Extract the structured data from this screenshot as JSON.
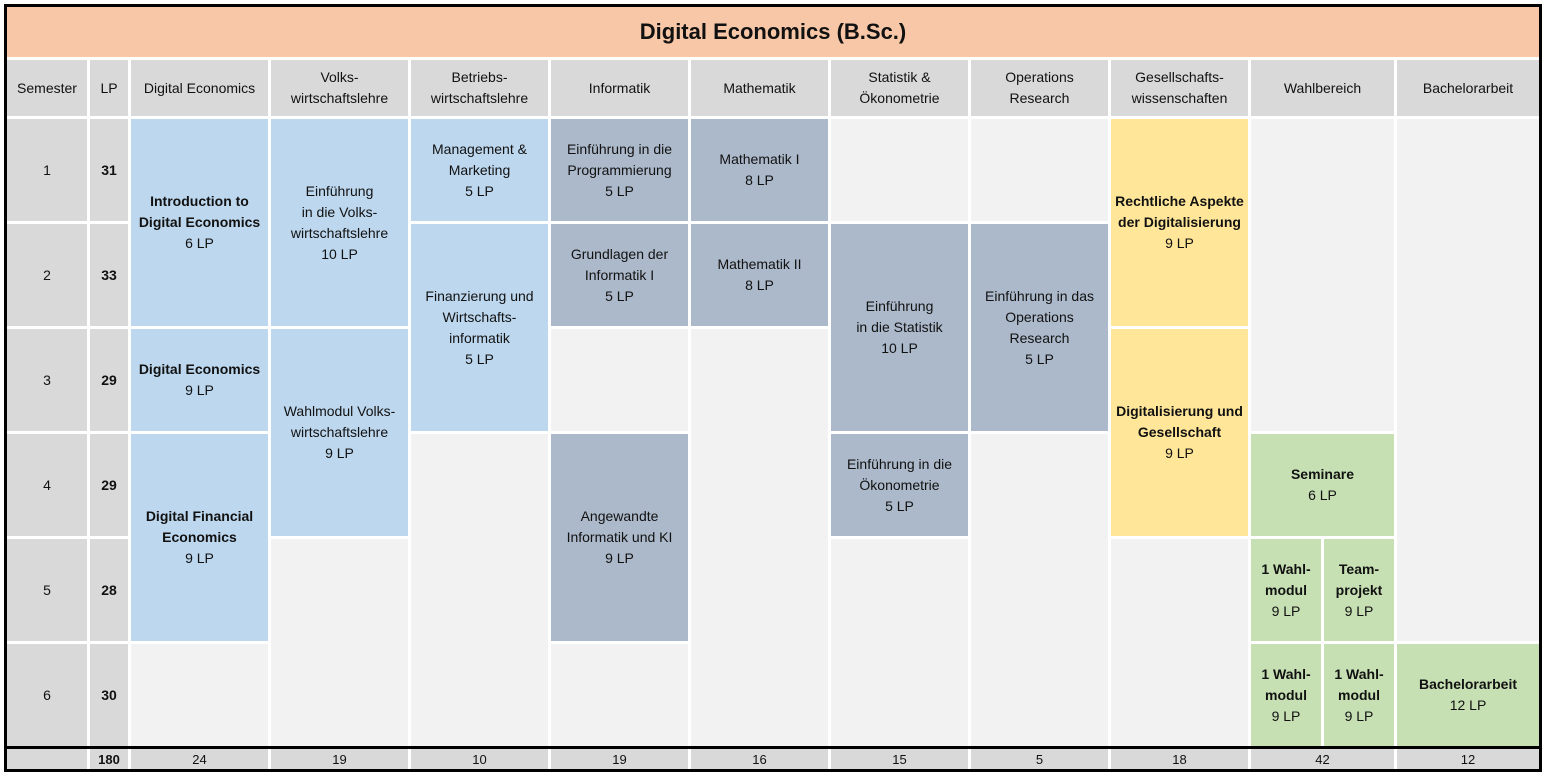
{
  "title": "Digital Economics (B.Sc.)",
  "headers": {
    "semester": "Semester",
    "lp": "LP",
    "digital_economics": "Digital Economics",
    "vwl": [
      "Volks-",
      "wirtschaftslehre"
    ],
    "bwl": [
      "Betriebs-",
      "wirtschaftslehre"
    ],
    "informatik": "Informatik",
    "mathematik": "Mathematik",
    "statistik": [
      "Statistik &",
      "Ökonometrie"
    ],
    "or": [
      "Operations",
      "Research"
    ],
    "gesellschaft": [
      "Gesellschafts-",
      "wissenschaften"
    ],
    "wahlbereich": "Wahlbereich",
    "bachelorarbeit": "Bachelorarbeit"
  },
  "semesters": [
    {
      "number": "1",
      "lp": "31"
    },
    {
      "number": "2",
      "lp": "33"
    },
    {
      "number": "3",
      "lp": "29"
    },
    {
      "number": "4",
      "lp": "29"
    },
    {
      "number": "5",
      "lp": "28"
    },
    {
      "number": "6",
      "lp": "30"
    }
  ],
  "modules": {
    "intro_de": {
      "lines": [
        "Introduction to",
        "Digital Economics"
      ],
      "lp": "6 LP"
    },
    "de": {
      "lines": [
        "Digital Economics"
      ],
      "lp": "9 LP"
    },
    "dfe": {
      "lines": [
        "Digital Financial",
        "Economics"
      ],
      "lp": "9 LP"
    },
    "vwl_intro": {
      "lines": [
        "Einführung",
        "in die Volks-",
        "wirtschaftslehre"
      ],
      "lp": "10 LP"
    },
    "vwl_wahl": {
      "lines": [
        "Wahlmodul Volks-",
        "wirtschaftslehre"
      ],
      "lp": "9 LP"
    },
    "mgmt": {
      "lines": [
        "Management &",
        "Marketing"
      ],
      "lp": "5 LP"
    },
    "finanz": {
      "lines": [
        "Finanzierung und",
        "Wirtschafts-",
        "informatik"
      ],
      "lp": "5 LP"
    },
    "prog": {
      "lines": [
        "Einführung in die",
        "Programmierung"
      ],
      "lp": "5 LP"
    },
    "grundlagen": {
      "lines": [
        "Grundlagen der",
        "Informatik I"
      ],
      "lp": "5 LP"
    },
    "angewandte": {
      "lines": [
        "Angewandte",
        "Informatik und KI"
      ],
      "lp": "9 LP"
    },
    "math1": {
      "lines": [
        "Mathematik I"
      ],
      "lp": "8 LP"
    },
    "math2": {
      "lines": [
        "Mathematik II"
      ],
      "lp": "8 LP"
    },
    "statistik": {
      "lines": [
        "Einführung",
        "in die Statistik"
      ],
      "lp": "10 LP"
    },
    "oekonometrie": {
      "lines": [
        "Einführung in die",
        "Ökonometrie"
      ],
      "lp": "5 LP"
    },
    "or": {
      "lines": [
        "Einführung in das",
        "Operations",
        "Research"
      ],
      "lp": "5 LP"
    },
    "recht": {
      "lines": [
        "Rechtliche Aspekte",
        "der Digitalisierung"
      ],
      "lp": "9 LP"
    },
    "digges": {
      "lines": [
        "Digitalisierung und",
        "Gesellschaft"
      ],
      "lp": "9 LP"
    },
    "seminare": {
      "lines": [
        "Seminare"
      ],
      "lp": "6 LP"
    },
    "wahl5": {
      "lines": [
        "1 Wahl-",
        "modul"
      ],
      "lp": "9 LP"
    },
    "team": {
      "lines": [
        "Team-",
        "projekt"
      ],
      "lp": "9 LP"
    },
    "wahl6a": {
      "lines": [
        "1 Wahl-",
        "modul"
      ],
      "lp": "9 LP"
    },
    "wahl6b": {
      "lines": [
        "1 Wahl-",
        "modul"
      ],
      "lp": "9 LP"
    },
    "bachelor": {
      "lines": [
        "Bachelorarbeit"
      ],
      "lp": "12 LP"
    }
  },
  "totals": {
    "lp": "180",
    "de": "24",
    "vwl": "19",
    "bwl": "10",
    "inf": "19",
    "math": "16",
    "stat": "15",
    "or": "5",
    "ges": "18",
    "wahl": "42",
    "ba": "12"
  },
  "colors": {
    "title_bg": "#f7c7a7",
    "header_bg": "#d9d9d9",
    "empty_bg": "#f2f2f2",
    "blue": "#bdd7ee",
    "slate": "#acb9ca",
    "yellow": "#ffe699",
    "green": "#c6e0b4"
  }
}
